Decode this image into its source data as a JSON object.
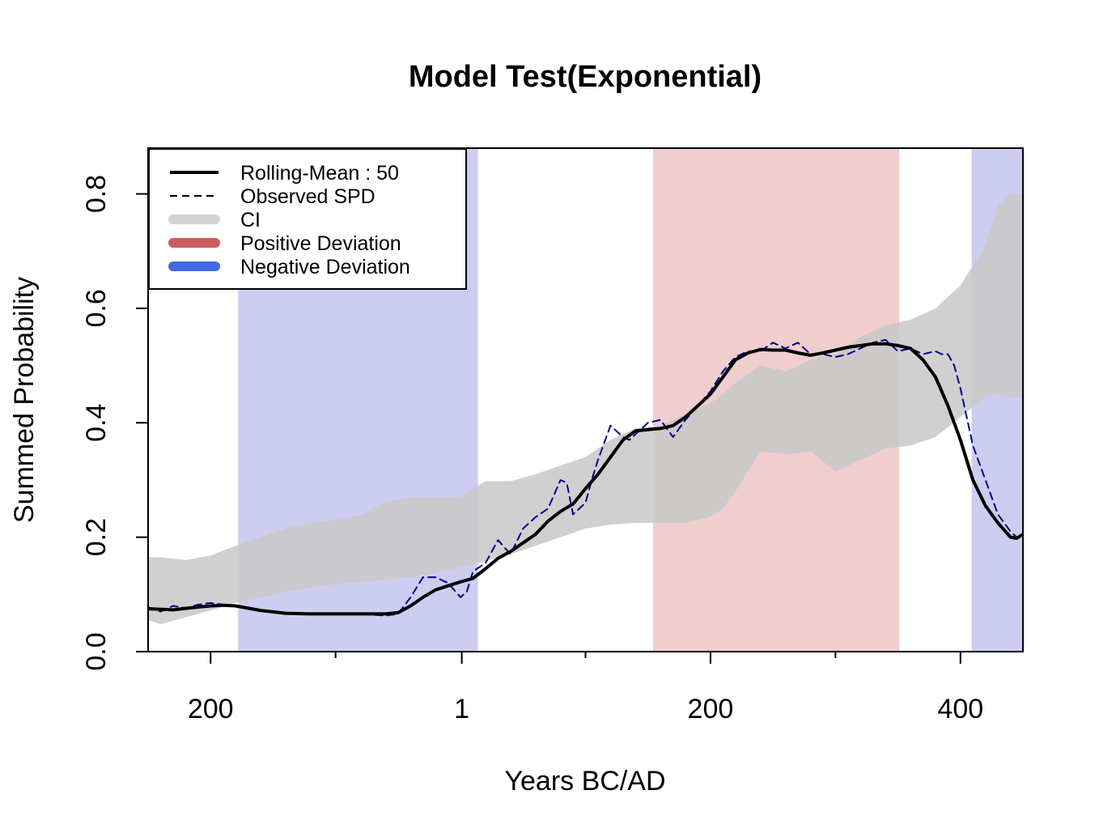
{
  "chart_data": {
    "type": "line",
    "title": "Model Test(Exponential)",
    "xlabel": "Years BC/AD",
    "ylabel": "Summed Probability",
    "x_unit": "year (negative = BC)",
    "xlim": [
      -250,
      450
    ],
    "ylim": [
      0,
      0.88
    ],
    "x_ticks": [
      {
        "value": -200,
        "label": "200"
      },
      {
        "value": 1,
        "label": "1"
      },
      {
        "value": 200,
        "label": "200"
      },
      {
        "value": 400,
        "label": "400"
      }
    ],
    "x_minor_ticks": [
      -100,
      100,
      300
    ],
    "y_ticks": [
      {
        "value": 0.0,
        "label": "0.0"
      },
      {
        "value": 0.2,
        "label": "0.2"
      },
      {
        "value": 0.4,
        "label": "0.4"
      },
      {
        "value": 0.6,
        "label": "0.6"
      },
      {
        "value": 0.8,
        "label": "0.8"
      }
    ],
    "legend_position": "top-left",
    "legend": [
      {
        "label": "Rolling-Mean : 50",
        "style": "solid-line",
        "color": "#000000"
      },
      {
        "label": "Observed SPD",
        "style": "dashed-line",
        "color": "#000000"
      },
      {
        "label": "CI",
        "style": "thick-line",
        "color": "#d3d3d3"
      },
      {
        "label": "Positive Deviation",
        "style": "thick-line",
        "color": "#cd5c5c"
      },
      {
        "label": "Negative Deviation",
        "style": "thick-line",
        "color": "#4169e1"
      }
    ],
    "deviation_regions": [
      {
        "type": "negative",
        "x0": -178,
        "x1": 14,
        "color": "#4b4bcc"
      },
      {
        "type": "positive",
        "x0": 154,
        "x1": 351,
        "color": "#cd5c5c"
      },
      {
        "type": "negative",
        "x0": 409,
        "x1": 450,
        "color": "#4b4bcc"
      }
    ],
    "ci_band": {
      "color": "#c8c8c8",
      "x": [
        -250,
        -240,
        -220,
        -200,
        -180,
        -160,
        -140,
        -120,
        -100,
        -80,
        -60,
        -40,
        -20,
        0,
        20,
        40,
        60,
        80,
        100,
        120,
        140,
        160,
        180,
        200,
        210,
        220,
        240,
        260,
        280,
        300,
        320,
        340,
        360,
        380,
        400,
        420,
        430,
        440,
        450
      ],
      "lower": [
        0.055,
        0.048,
        0.06,
        0.072,
        0.085,
        0.095,
        0.105,
        0.112,
        0.118,
        0.122,
        0.126,
        0.13,
        0.138,
        0.148,
        0.158,
        0.17,
        0.185,
        0.2,
        0.215,
        0.222,
        0.225,
        0.225,
        0.225,
        0.235,
        0.25,
        0.28,
        0.35,
        0.345,
        0.35,
        0.315,
        0.335,
        0.355,
        0.36,
        0.375,
        0.41,
        0.445,
        0.45,
        0.445,
        0.445
      ],
      "upper": [
        0.165,
        0.165,
        0.16,
        0.168,
        0.185,
        0.2,
        0.215,
        0.225,
        0.23,
        0.238,
        0.262,
        0.27,
        0.27,
        0.27,
        0.298,
        0.298,
        0.31,
        0.325,
        0.34,
        0.37,
        0.39,
        0.395,
        0.415,
        0.435,
        0.45,
        0.47,
        0.5,
        0.49,
        0.51,
        0.52,
        0.55,
        0.57,
        0.58,
        0.6,
        0.64,
        0.71,
        0.78,
        0.8,
        0.8
      ]
    },
    "series": [
      {
        "name": "Rolling-Mean : 50",
        "style": "solid",
        "color": "#000000",
        "x": [
          -250,
          -230,
          -210,
          -200,
          -190,
          -180,
          -160,
          -140,
          -120,
          -100,
          -80,
          -60,
          -50,
          -40,
          -30,
          -20,
          -10,
          0,
          10,
          20,
          30,
          40,
          50,
          60,
          70,
          80,
          90,
          100,
          110,
          120,
          130,
          140,
          150,
          160,
          170,
          180,
          190,
          200,
          210,
          220,
          230,
          240,
          250,
          260,
          270,
          280,
          290,
          300,
          310,
          320,
          330,
          340,
          350,
          360,
          370,
          380,
          390,
          400,
          410,
          420,
          425,
          430,
          440,
          445,
          450
        ],
        "y": [
          0.075,
          0.073,
          0.078,
          0.08,
          0.081,
          0.08,
          0.072,
          0.067,
          0.066,
          0.066,
          0.066,
          0.066,
          0.068,
          0.08,
          0.095,
          0.108,
          0.115,
          0.122,
          0.128,
          0.145,
          0.163,
          0.175,
          0.19,
          0.205,
          0.228,
          0.245,
          0.258,
          0.285,
          0.31,
          0.34,
          0.37,
          0.386,
          0.388,
          0.39,
          0.395,
          0.41,
          0.43,
          0.45,
          0.48,
          0.51,
          0.522,
          0.528,
          0.527,
          0.527,
          0.522,
          0.518,
          0.522,
          0.527,
          0.532,
          0.535,
          0.538,
          0.538,
          0.535,
          0.53,
          0.51,
          0.48,
          0.43,
          0.37,
          0.3,
          0.255,
          0.24,
          0.225,
          0.2,
          0.198,
          0.205
        ]
      },
      {
        "name": "Observed SPD",
        "style": "dashed",
        "color": "#00008b",
        "x": [
          -250,
          -240,
          -230,
          -220,
          -210,
          -200,
          -190,
          -180,
          -160,
          -140,
          -120,
          -100,
          -80,
          -60,
          -50,
          -40,
          -30,
          -20,
          -10,
          0,
          5,
          10,
          20,
          30,
          40,
          50,
          60,
          70,
          80,
          85,
          90,
          100,
          105,
          110,
          120,
          130,
          135,
          140,
          150,
          160,
          170,
          180,
          190,
          200,
          210,
          220,
          230,
          240,
          250,
          260,
          270,
          280,
          290,
          300,
          310,
          320,
          330,
          340,
          350,
          360,
          370,
          380,
          385,
          390,
          395,
          400,
          410,
          420,
          425,
          430,
          440,
          445,
          450
        ],
        "y": [
          0.078,
          0.07,
          0.08,
          0.076,
          0.082,
          0.085,
          0.082,
          0.08,
          0.072,
          0.066,
          0.066,
          0.066,
          0.066,
          0.063,
          0.066,
          0.095,
          0.13,
          0.13,
          0.12,
          0.095,
          0.105,
          0.14,
          0.155,
          0.195,
          0.17,
          0.215,
          0.235,
          0.25,
          0.3,
          0.295,
          0.24,
          0.26,
          0.3,
          0.335,
          0.395,
          0.375,
          0.37,
          0.38,
          0.4,
          0.405,
          0.375,
          0.405,
          0.43,
          0.455,
          0.49,
          0.515,
          0.525,
          0.525,
          0.54,
          0.53,
          0.54,
          0.52,
          0.52,
          0.515,
          0.52,
          0.53,
          0.54,
          0.545,
          0.525,
          0.53,
          0.52,
          0.525,
          0.52,
          0.52,
          0.5,
          0.46,
          0.36,
          0.3,
          0.27,
          0.24,
          0.21,
          0.2,
          0.205
        ]
      }
    ]
  }
}
